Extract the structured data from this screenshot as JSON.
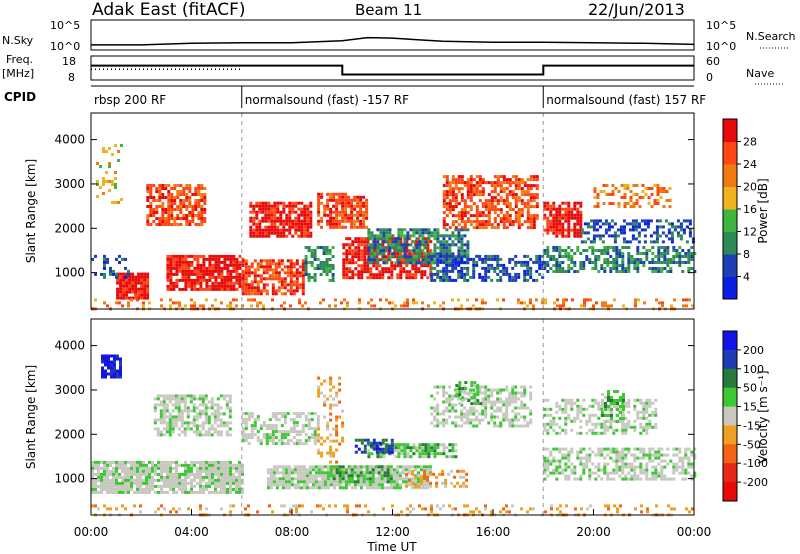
{
  "header": {
    "station": "Adak East (fitACF)",
    "beam": "Beam 11",
    "date": "22/Jun/2013"
  },
  "colors": {
    "ink": "#000000",
    "gray_scatter": "#bdbdb8",
    "power_scale": [
      "#0a1ee6",
      "#1f3fb4",
      "#2f8a55",
      "#3fb43f",
      "#f0b21e",
      "#f07a10",
      "#ff4614",
      "#e60a0a"
    ],
    "velocity_scale": [
      "#1414e6",
      "#1e3cb4",
      "#287a3c",
      "#3cc832",
      "#c8c8c0",
      "#c8c8c0",
      "#f0a01e",
      "#f06414",
      "#e62814",
      "#e60a0a"
    ]
  },
  "chart_data": [
    {
      "type": "line",
      "panel": "sky-noise",
      "left_label": "N.Sky",
      "right_label": "N.Search",
      "y_ticks": [
        "10^5",
        "10^0"
      ],
      "right_ticks": [
        "10^5",
        "10^0"
      ],
      "log_scale": true,
      "xlim": [
        0,
        24
      ],
      "series": [
        {
          "values": [
            [
              0,
              0.6
            ],
            [
              2,
              0.6
            ],
            [
              4,
              0.9
            ],
            [
              6,
              1.0
            ],
            [
              8,
              1.0
            ],
            [
              9,
              1.2
            ],
            [
              10,
              1.4
            ],
            [
              11,
              2.0
            ],
            [
              12,
              1.9
            ],
            [
              13,
              1.6
            ],
            [
              14,
              1.3
            ],
            [
              16,
              1.1
            ],
            [
              18,
              1.1
            ],
            [
              20,
              1.0
            ],
            [
              22,
              0.9
            ],
            [
              24,
              0.7
            ]
          ]
        }
      ]
    },
    {
      "type": "line",
      "panel": "frequency",
      "left_label": "Freq.",
      "left_unit": "[MHz]",
      "right_label": "Nave",
      "y_ticks": [
        "18",
        "8"
      ],
      "right_ticks": [
        "60",
        "0"
      ],
      "xlim": [
        0,
        24
      ],
      "series": [
        {
          "values": [
            [
              0,
              14.0
            ],
            [
              10.0,
              14.0
            ],
            [
              10.0,
              10.3
            ],
            [
              18.0,
              10.3
            ],
            [
              18.0,
              14.0
            ],
            [
              24,
              14.0
            ]
          ]
        },
        {
          "values": [
            [
              0,
              12.5
            ],
            [
              2,
              12.5
            ],
            [
              4,
              12.5
            ],
            [
              6,
              12.5
            ]
          ]
        }
      ]
    },
    {
      "type": "table",
      "panel": "cpid",
      "label": "CPID",
      "segments": [
        {
          "start": 0,
          "end": 6.0,
          "text": "rbsp 200 RF"
        },
        {
          "start": 6.0,
          "end": 18.0,
          "text": "normalsound (fast) -157 RF"
        },
        {
          "start": 18.0,
          "end": 24,
          "text": "normalsound (fast) 157 RF"
        }
      ]
    },
    {
      "type": "heatmap",
      "panel": "power",
      "ylabel": "Slant Range [km]",
      "ylim": [
        180,
        4600
      ],
      "y_ticks": [
        1000,
        2000,
        3000,
        4000
      ],
      "xlim": [
        0,
        24
      ],
      "colorbar_label": "Power [dB]",
      "colorbar_ticks": [
        4,
        8,
        12,
        16,
        20,
        24,
        28
      ],
      "colorbar_range": [
        0,
        32
      ],
      "echo_regions": [
        {
          "t0": 0.2,
          "t1": 1.2,
          "r0": 2600,
          "r1": 3900,
          "level": 4,
          "density": 0.25
        },
        {
          "t0": 1.0,
          "t1": 2.2,
          "r0": 400,
          "r1": 1000,
          "level": 7,
          "density": 0.95
        },
        {
          "t0": 0.0,
          "t1": 1.5,
          "r0": 900,
          "r1": 1400,
          "level": 1,
          "density": 0.3
        },
        {
          "t0": 2.2,
          "t1": 4.5,
          "r0": 2100,
          "r1": 3000,
          "level": 6,
          "density": 0.7
        },
        {
          "t0": 3.0,
          "t1": 6.0,
          "r0": 600,
          "r1": 1400,
          "level": 7,
          "density": 0.85
        },
        {
          "t0": 6.3,
          "t1": 8.8,
          "r0": 1800,
          "r1": 2600,
          "level": 7,
          "density": 0.8
        },
        {
          "t0": 6.0,
          "t1": 8.5,
          "r0": 500,
          "r1": 1300,
          "level": 6,
          "density": 0.75
        },
        {
          "t0": 8.5,
          "t1": 9.6,
          "r0": 800,
          "r1": 1600,
          "level": 2,
          "density": 0.6
        },
        {
          "t0": 9.0,
          "t1": 11.0,
          "r0": 2000,
          "r1": 2800,
          "level": 6,
          "density": 0.7
        },
        {
          "t0": 10.0,
          "t1": 13.5,
          "r0": 900,
          "r1": 1800,
          "level": 7,
          "density": 0.75
        },
        {
          "t0": 11.0,
          "t1": 15.0,
          "r0": 1200,
          "r1": 2000,
          "level": 2,
          "density": 0.7
        },
        {
          "t0": 14.0,
          "t1": 17.8,
          "r0": 2000,
          "r1": 3200,
          "level": 6,
          "density": 0.65
        },
        {
          "t0": 13.5,
          "t1": 18.0,
          "r0": 800,
          "r1": 1400,
          "level": 1,
          "density": 0.55
        },
        {
          "t0": 18.0,
          "t1": 19.5,
          "r0": 1800,
          "r1": 2600,
          "level": 7,
          "density": 0.75
        },
        {
          "t0": 18.0,
          "t1": 24.0,
          "r0": 1000,
          "r1": 1600,
          "level": 2,
          "density": 0.55
        },
        {
          "t0": 19.5,
          "t1": 24.0,
          "r0": 1700,
          "r1": 2200,
          "level": 1,
          "density": 0.45
        },
        {
          "t0": 20.0,
          "t1": 23.0,
          "r0": 2500,
          "r1": 3000,
          "level": 5,
          "density": 0.45
        },
        {
          "t0": 0.0,
          "t1": 24.0,
          "r0": 200,
          "r1": 420,
          "level": 5,
          "density": 0.25
        }
      ]
    },
    {
      "type": "heatmap",
      "panel": "velocity",
      "ylabel": "Slant Range [km]",
      "ylim": [
        180,
        4600
      ],
      "y_ticks": [
        1000,
        2000,
        3000,
        4000
      ],
      "xlim": [
        0,
        24
      ],
      "xlabel": "Time UT",
      "x_ticks": [
        "00:00",
        "04:00",
        "08:00",
        "12:00",
        "16:00",
        "20:00",
        "00:00"
      ],
      "colorbar_label": "Velocity [m s⁻¹]",
      "colorbar_ticks": [
        200,
        100,
        50,
        15,
        -15,
        -50,
        -100,
        -200
      ],
      "echo_regions": [
        {
          "t0": 0.4,
          "t1": 1.2,
          "r0": 3300,
          "r1": 3800,
          "level": 0,
          "density": 0.85
        },
        {
          "t0": 0.0,
          "t1": 6.0,
          "r0": 700,
          "r1": 1400,
          "level": 4,
          "density": 0.85
        },
        {
          "t0": 2.5,
          "t1": 5.5,
          "r0": 2000,
          "r1": 2900,
          "level": 4,
          "density": 0.6
        },
        {
          "t0": 6.0,
          "t1": 9.0,
          "r0": 1800,
          "r1": 2500,
          "level": 4,
          "density": 0.55
        },
        {
          "t0": 7.0,
          "t1": 13.5,
          "r0": 800,
          "r1": 1300,
          "level": 4,
          "density": 0.85
        },
        {
          "t0": 9.0,
          "t1": 10.0,
          "r0": 1200,
          "r1": 3300,
          "level": 6,
          "density": 0.3
        },
        {
          "t0": 9.5,
          "t1": 12.0,
          "r0": 900,
          "r1": 1300,
          "level": 3,
          "density": 0.75
        },
        {
          "t0": 11.0,
          "t1": 14.5,
          "r0": 1500,
          "r1": 1800,
          "level": 3,
          "density": 0.7
        },
        {
          "t0": 10.5,
          "t1": 12.0,
          "r0": 1600,
          "r1": 1900,
          "level": 1,
          "density": 0.6
        },
        {
          "t0": 13.5,
          "t1": 17.5,
          "r0": 2200,
          "r1": 3100,
          "level": 4,
          "density": 0.55
        },
        {
          "t0": 14.5,
          "t1": 15.5,
          "r0": 2700,
          "r1": 3200,
          "level": 3,
          "density": 0.5
        },
        {
          "t0": 12.5,
          "t1": 15.0,
          "r0": 800,
          "r1": 1200,
          "level": 6,
          "density": 0.35
        },
        {
          "t0": 18.0,
          "t1": 24.0,
          "r0": 1000,
          "r1": 1700,
          "level": 4,
          "density": 0.55
        },
        {
          "t0": 18.0,
          "t1": 22.5,
          "r0": 2000,
          "r1": 2800,
          "level": 4,
          "density": 0.45
        },
        {
          "t0": 20.3,
          "t1": 21.2,
          "r0": 2300,
          "r1": 3000,
          "level": 3,
          "density": 0.6
        },
        {
          "t0": 0.0,
          "t1": 24.0,
          "r0": 200,
          "r1": 420,
          "level": 6,
          "density": 0.2
        }
      ]
    }
  ]
}
